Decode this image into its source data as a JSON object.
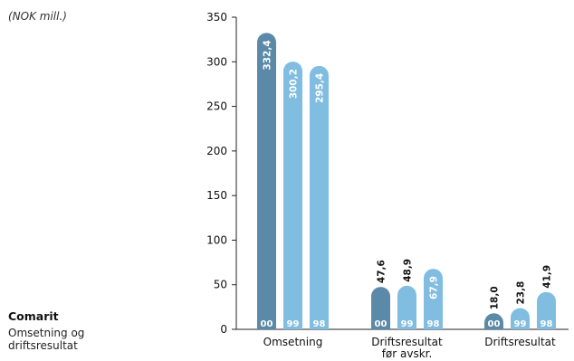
{
  "unit_label": "(NOK mill.)",
  "caption": {
    "title": "Comarit",
    "subtitle_lines": [
      "Omsetning og",
      "driftsresultat"
    ]
  },
  "colors": {
    "current": "#5b8aa9",
    "previous": "#80bde0"
  },
  "chart_data": {
    "type": "bar",
    "categories": [
      [
        "Omsetning"
      ],
      [
        "Driftsresultat",
        "før avskr."
      ],
      [
        "Driftsresultat"
      ]
    ],
    "series": [
      {
        "year_label": "00",
        "values": [
          332.4,
          47.6,
          18.0
        ],
        "labels": [
          "332,4",
          "47,6",
          "18,0"
        ]
      },
      {
        "year_label": "99",
        "values": [
          300.2,
          48.9,
          23.8
        ],
        "labels": [
          "300,2",
          "48,9",
          "23,8"
        ]
      },
      {
        "year_label": "98",
        "values": [
          295.4,
          67.9,
          41.9
        ],
        "labels": [
          "295,4",
          "67,9",
          "41,9"
        ]
      }
    ],
    "yticks": [
      "0",
      "50",
      "100",
      "150",
      "200",
      "250",
      "300",
      "350"
    ],
    "ylim": [
      0,
      350
    ],
    "grid": false
  }
}
